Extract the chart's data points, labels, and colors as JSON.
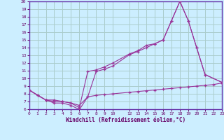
{
  "bg_color": "#cceeff",
  "line_color": "#993399",
  "grid_color": "#aacccc",
  "xlabel": "Windchill (Refroidissement éolien,°C)",
  "xlim": [
    0,
    23
  ],
  "ylim": [
    6,
    20
  ],
  "yticks": [
    6,
    7,
    8,
    9,
    10,
    11,
    12,
    13,
    14,
    15,
    16,
    17,
    18,
    19,
    20
  ],
  "xticks": [
    0,
    1,
    2,
    3,
    4,
    5,
    6,
    7,
    8,
    9,
    10,
    12,
    13,
    14,
    15,
    16,
    17,
    18,
    19,
    20,
    21,
    22,
    23
  ],
  "line1_x": [
    0,
    1,
    2,
    3,
    4,
    5,
    6,
    7,
    8,
    9,
    10,
    12,
    13,
    14,
    15,
    16,
    17,
    18,
    19,
    20,
    21,
    23
  ],
  "line1_y": [
    8.5,
    7.8,
    7.2,
    6.8,
    6.8,
    6.5,
    5.95,
    7.6,
    10.9,
    11.2,
    11.6,
    13.1,
    13.5,
    14.0,
    14.5,
    15.0,
    17.5,
    20.0,
    17.5,
    14.0,
    10.5,
    9.5
  ],
  "line2_x": [
    0,
    2,
    3,
    4,
    5,
    6,
    7,
    8,
    9,
    10,
    12,
    13,
    14,
    15,
    16,
    17,
    18,
    19,
    20,
    21,
    23
  ],
  "line2_y": [
    8.5,
    7.2,
    7.2,
    7.0,
    6.8,
    6.2,
    10.9,
    11.1,
    11.5,
    12.0,
    13.2,
    13.6,
    14.3,
    14.5,
    15.0,
    17.5,
    20.0,
    17.5,
    14.0,
    10.5,
    9.5
  ],
  "line3_x": [
    0,
    1,
    2,
    3,
    4,
    5,
    6,
    7,
    8,
    9,
    10,
    12,
    13,
    14,
    15,
    16,
    17,
    18,
    19,
    20,
    21,
    22,
    23
  ],
  "line3_y": [
    8.5,
    7.8,
    7.2,
    7.0,
    7.0,
    6.8,
    6.5,
    7.6,
    7.8,
    7.9,
    8.0,
    8.2,
    8.3,
    8.4,
    8.5,
    8.6,
    8.7,
    8.8,
    8.9,
    9.0,
    9.1,
    9.2,
    9.4
  ]
}
